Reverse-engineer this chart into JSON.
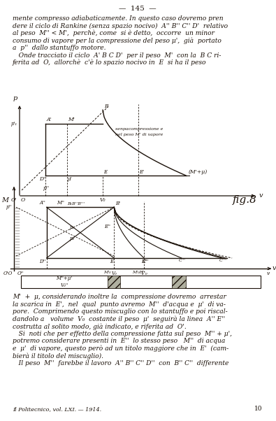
{
  "page_number": "145",
  "title_journal": "Il Politecnico, vol. LXI. — 1914.",
  "page_num_right": "10",
  "body_text_top": [
    "mente compresso adiabaticamente. In questo caso dovremo pren",
    "dere il ciclo di Rankine (senza spazio nocivo)  A'' B'' C'' D'  relativo",
    "al peso  M'' < M',  perchè, come  si è detto,  occorre  un minor",
    "consumo di vapore per la compressione del peso μ',  già  portato",
    "a  p''  dallo stantuffo motore.",
    "   Onde tracciato il ciclo  A' B C D'  per il peso  M'  con la  B C ri-",
    "ferita ad  O,  allorchè  c'è lo spazio nocivo in  E  si ha il peso"
  ],
  "body_text_bottom": [
    "M'  +  μ, considerando inoltre la  compressione dovremo  arrestar",
    "la scarica in  E',  nel  qual  punto avremo  M''  d'acqua e  μ'  di va-",
    "pore.  Comprimendo questo miscuglio con lo stantuffo e poi riscal-",
    "dandolo a   volume  V₀  costante il peso  μ'  seguirà la linea  A'' E''",
    "costrutta al solito modo, già indicato, e riferita ad  O'.",
    "   Si  noti che per effetto della compressione fatta sul peso  M'' + μ',",
    "potremo considerare presenti in  E''  lo stesso peso   M''  di acqua",
    "e  μ'  di vapore, questo però ad un titolo maggiore che in  E'  (cam-",
    "bierà il titolo del miscuglio).",
    "   Il peso  M''  farebbe il lavoro  A'' B'' C'' D''  con  B'' C''  differente"
  ],
  "background_color": "#f2ede3",
  "text_color": "#1a1008",
  "fig_label": "fig.8"
}
